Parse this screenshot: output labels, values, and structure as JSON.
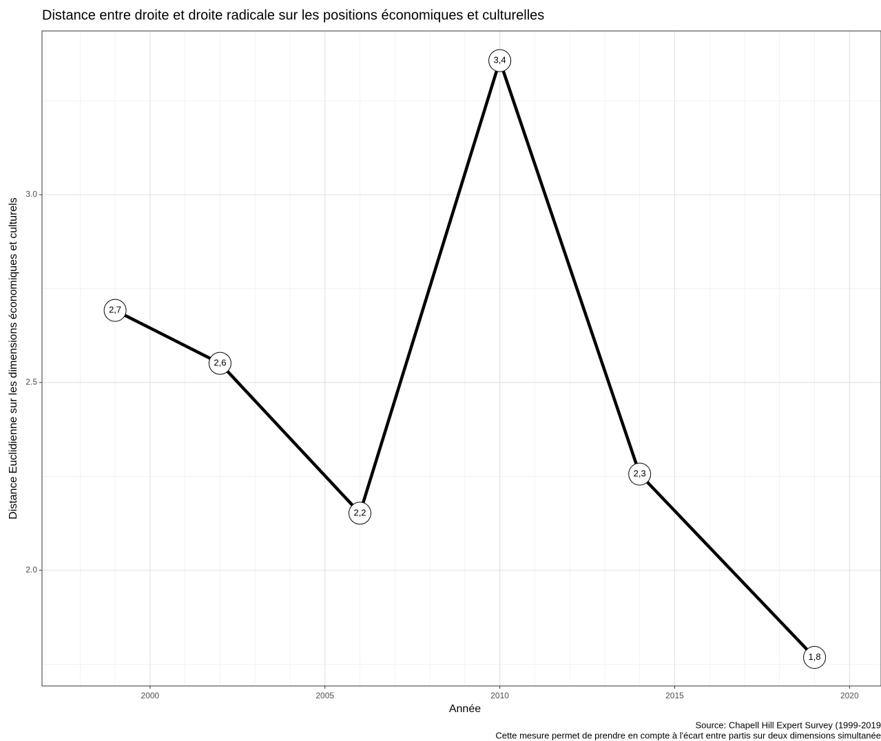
{
  "chart_data": {
    "type": "line",
    "title": "Distance entre droite et droite radicale sur les positions économiques et culturelles",
    "x_label": "Année",
    "y_label": "Distance Euclidienne sur les dimensions économiques et culturels",
    "caption": [
      "Source: Chapell Hill Expert Survey (1999-2019",
      "Cette mesure permet de prendre en compte à l'écart entre partis sur deux dimensions simultanée"
    ],
    "x": [
      1999,
      2002,
      2006,
      2010,
      2014,
      2019
    ],
    "values": [
      2.692,
      2.551,
      2.152,
      3.357,
      2.256,
      1.768
    ],
    "value_labels": [
      "2,7",
      "2,6",
      "2,2",
      "3,4",
      "2,3",
      "1,8"
    ],
    "color": "#000000",
    "xlim": [
      1996.91,
      2020.9
    ],
    "xticks": [
      2000,
      2005,
      2010,
      2015,
      2020
    ],
    "x_minor_ticks": [
      1997,
      1998,
      1999,
      2001,
      2002,
      2003,
      2004,
      2006,
      2007,
      2008,
      2009,
      2011,
      2012,
      2013,
      2014,
      2016,
      2017,
      2018,
      2019
    ],
    "ylim": [
      1.692,
      3.436
    ],
    "yticks": [
      {
        "value": 2,
        "label": "2.0"
      },
      2.5,
      {
        "value": 3,
        "label": "3.0"
      }
    ],
    "y_minor_ticks": [
      1.75,
      2.25,
      2.75,
      3.25
    ],
    "grid": true
  }
}
